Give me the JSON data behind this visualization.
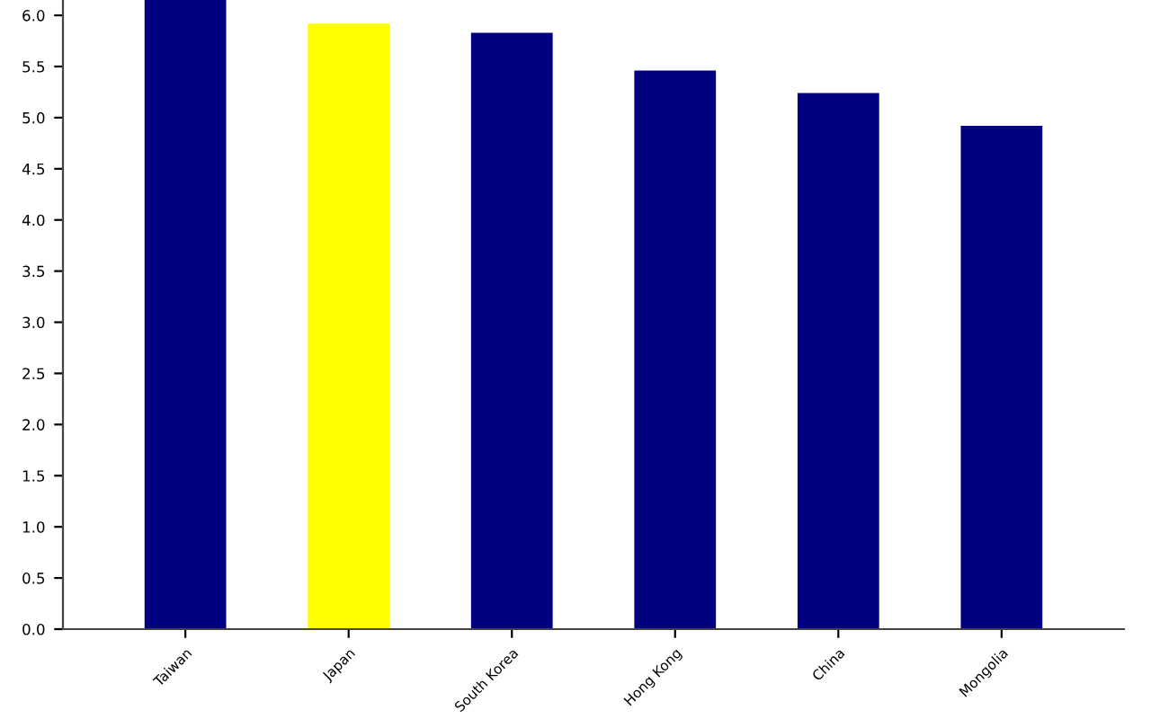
{
  "chart_data": {
    "type": "bar",
    "categories": [
      "Taiwan",
      "Japan",
      "South Korea",
      "Hong Kong",
      "China",
      "Mongolia"
    ],
    "values": [
      6.15,
      5.92,
      5.83,
      5.46,
      5.24,
      4.92
    ],
    "colors": [
      "#000080",
      "#ffff00",
      "#000080",
      "#000080",
      "#000080",
      "#000080"
    ],
    "ylim": [
      0,
      6.15
    ],
    "yticks": [
      {
        "value": 0,
        "label": "0.0"
      },
      {
        "value": 0.5,
        "label": "0.5"
      },
      {
        "value": 1,
        "label": "1.0"
      },
      {
        "value": 1.5,
        "label": "1.5"
      },
      {
        "value": 2,
        "label": "2.0"
      },
      {
        "value": 2.5,
        "label": "2.5"
      },
      {
        "value": 3,
        "label": "3.0"
      },
      {
        "value": 3.5,
        "label": "3.5"
      },
      {
        "value": 4,
        "label": "4.0"
      },
      {
        "value": 4.5,
        "label": "4.5"
      },
      {
        "value": 5,
        "label": "5.0"
      },
      {
        "value": 5.5,
        "label": "5.5"
      },
      {
        "value": 6,
        "label": "6.0"
      }
    ],
    "grid": false
  }
}
